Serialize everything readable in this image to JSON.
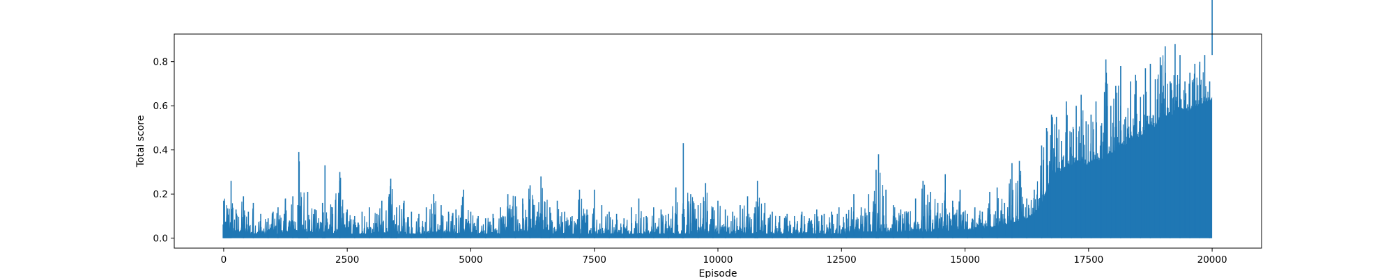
{
  "chart_data": {
    "type": "line",
    "title": "",
    "xlabel": "Episode",
    "ylabel": "Total score",
    "xlim": [
      -1000,
      21000
    ],
    "ylim": [
      -0.045,
      0.925
    ],
    "xticks": [
      0,
      2500,
      5000,
      7500,
      10000,
      12500,
      15000,
      17500,
      20000
    ],
    "yticks": [
      0.0,
      0.2,
      0.4,
      0.6,
      0.8
    ],
    "xtick_labels": [
      "0",
      "2500",
      "5000",
      "7500",
      "10000",
      "12500",
      "15000",
      "17500",
      "20000"
    ],
    "ytick_labels": [
      "0.0",
      "0.2",
      "0.4",
      "0.6",
      "0.8"
    ],
    "grid": false,
    "legend": "none",
    "series": [
      {
        "color": "#1f77b4",
        "x": [
          0,
          150,
          250,
          400,
          500,
          600,
          750,
          900,
          1000,
          1100,
          1250,
          1400,
          1500,
          1520,
          1700,
          1850,
          2000,
          2050,
          2200,
          2350,
          2500,
          2650,
          2800,
          2950,
          3100,
          3200,
          3350,
          3380,
          3500,
          3650,
          3800,
          3950,
          4100,
          4250,
          4400,
          4550,
          4700,
          4850,
          5000,
          5150,
          5300,
          5450,
          5600,
          5750,
          5900,
          6050,
          6200,
          6350,
          6420,
          6600,
          6750,
          6900,
          7050,
          7200,
          7350,
          7500,
          7650,
          7800,
          7950,
          8100,
          8250,
          8400,
          8550,
          8700,
          8850,
          9000,
          9150,
          9280,
          9300,
          9450,
          9600,
          9750,
          9900,
          10000,
          10150,
          10300,
          10450,
          10600,
          10750,
          10800,
          10950,
          11100,
          11250,
          11400,
          11550,
          11700,
          11850,
          12000,
          12150,
          12300,
          12450,
          12600,
          12750,
          12900,
          13050,
          13200,
          13250,
          13400,
          13550,
          13700,
          13850,
          14000,
          14150,
          14300,
          14450,
          14600,
          14750,
          14900,
          15050,
          15200,
          15350,
          15500,
          15650,
          15800,
          15950,
          16100,
          16250,
          16400,
          16550,
          16650,
          16750,
          16850,
          16950,
          17050,
          17150,
          17250,
          17350,
          17450,
          17550,
          17650,
          17750,
          17850,
          17950,
          18050,
          18150,
          18250,
          18350,
          18450,
          18550,
          18650,
          18750,
          18850,
          18950,
          19050,
          19150,
          19250,
          19350,
          19450,
          19550,
          19650,
          19750,
          19850,
          19950,
          20000
        ],
        "min": [
          0.0,
          0.0,
          0.01,
          0.0,
          0.01,
          0.0,
          0.01,
          0.0,
          0.01,
          0.0,
          0.01,
          0.0,
          0.01,
          0.0,
          0.0,
          0.01,
          0.0,
          0.0,
          0.01,
          0.0,
          0.01,
          0.0,
          0.01,
          0.0,
          0.01,
          0.0,
          0.01,
          0.0,
          0.0,
          0.01,
          0.0,
          0.01,
          0.0,
          0.01,
          0.0,
          0.01,
          0.0,
          0.01,
          0.0,
          0.01,
          0.0,
          0.01,
          0.0,
          0.01,
          0.0,
          0.01,
          0.0,
          0.01,
          0.0,
          0.0,
          0.01,
          0.0,
          0.01,
          0.0,
          0.01,
          0.0,
          0.01,
          0.0,
          0.01,
          0.0,
          0.01,
          0.0,
          0.01,
          0.0,
          0.01,
          0.0,
          0.01,
          0.0,
          0.0,
          0.01,
          0.0,
          0.01,
          0.0,
          0.01,
          0.0,
          0.01,
          0.0,
          0.01,
          0.0,
          0.0,
          0.01,
          0.0,
          0.01,
          0.0,
          0.01,
          0.0,
          0.01,
          0.0,
          0.01,
          0.0,
          0.01,
          0.0,
          0.01,
          0.0,
          0.01,
          0.0,
          0.0,
          0.01,
          0.0,
          0.01,
          0.0,
          0.01,
          0.0,
          0.01,
          0.0,
          0.01,
          0.0,
          0.01,
          0.0,
          0.01,
          0.0,
          0.01,
          0.0,
          0.01,
          0.0,
          0.01,
          0.0,
          0.01,
          0.0,
          0.01,
          0.0,
          0.01,
          0.0,
          0.01,
          0.0,
          0.01,
          0.0,
          0.01,
          0.0,
          0.01,
          0.0,
          0.01,
          0.0,
          0.01,
          0.0,
          0.01,
          0.0,
          0.01,
          0.0,
          0.01,
          0.0,
          0.01,
          0.0,
          0.01,
          0.0,
          0.01,
          0.0,
          0.01,
          0.0,
          0.01,
          0.0,
          0.01,
          0.0
        ],
        "max": [
          0.17,
          0.26,
          0.13,
          0.19,
          0.12,
          0.16,
          0.11,
          0.09,
          0.12,
          0.14,
          0.18,
          0.19,
          0.15,
          0.39,
          0.21,
          0.13,
          0.16,
          0.33,
          0.14,
          0.3,
          0.13,
          0.1,
          0.12,
          0.14,
          0.11,
          0.17,
          0.2,
          0.27,
          0.14,
          0.17,
          0.12,
          0.11,
          0.14,
          0.2,
          0.15,
          0.12,
          0.13,
          0.22,
          0.12,
          0.1,
          0.09,
          0.11,
          0.14,
          0.2,
          0.19,
          0.18,
          0.24,
          0.12,
          0.28,
          0.14,
          0.17,
          0.12,
          0.1,
          0.22,
          0.13,
          0.22,
          0.15,
          0.12,
          0.11,
          0.09,
          0.14,
          0.18,
          0.1,
          0.14,
          0.13,
          0.11,
          0.23,
          0.11,
          0.43,
          0.2,
          0.15,
          0.25,
          0.14,
          0.17,
          0.13,
          0.12,
          0.15,
          0.19,
          0.14,
          0.26,
          0.16,
          0.12,
          0.1,
          0.11,
          0.1,
          0.12,
          0.09,
          0.13,
          0.11,
          0.12,
          0.14,
          0.11,
          0.2,
          0.14,
          0.2,
          0.31,
          0.38,
          0.22,
          0.15,
          0.13,
          0.12,
          0.18,
          0.26,
          0.21,
          0.16,
          0.29,
          0.17,
          0.22,
          0.11,
          0.14,
          0.12,
          0.21,
          0.23,
          0.16,
          0.34,
          0.35,
          0.18,
          0.22,
          0.42,
          0.5,
          0.56,
          0.55,
          0.44,
          0.62,
          0.48,
          0.6,
          0.65,
          0.53,
          0.56,
          0.62,
          0.51,
          0.81,
          0.6,
          0.69,
          0.78,
          0.55,
          0.71,
          0.74,
          0.64,
          0.77,
          0.79,
          0.72,
          0.82,
          0.87,
          0.71,
          0.88,
          0.83,
          0.71,
          0.75,
          0.79,
          0.8,
          0.83,
          0.71,
          0.83,
          0.65
        ],
        "dense": [
          0.02,
          0.03,
          0.03,
          0.03,
          0.02,
          0.02,
          0.02,
          0.02,
          0.02,
          0.02,
          0.03,
          0.03,
          0.03,
          0.03,
          0.03,
          0.02,
          0.03,
          0.03,
          0.02,
          0.03,
          0.02,
          0.02,
          0.02,
          0.02,
          0.02,
          0.02,
          0.03,
          0.03,
          0.02,
          0.02,
          0.02,
          0.02,
          0.02,
          0.03,
          0.02,
          0.02,
          0.02,
          0.03,
          0.02,
          0.02,
          0.02,
          0.02,
          0.02,
          0.02,
          0.03,
          0.03,
          0.03,
          0.02,
          0.03,
          0.02,
          0.02,
          0.02,
          0.02,
          0.02,
          0.02,
          0.02,
          0.02,
          0.02,
          0.02,
          0.02,
          0.02,
          0.02,
          0.02,
          0.02,
          0.02,
          0.02,
          0.02,
          0.02,
          0.02,
          0.02,
          0.02,
          0.02,
          0.02,
          0.02,
          0.02,
          0.02,
          0.02,
          0.02,
          0.02,
          0.02,
          0.02,
          0.02,
          0.02,
          0.02,
          0.02,
          0.02,
          0.02,
          0.02,
          0.02,
          0.02,
          0.02,
          0.02,
          0.03,
          0.03,
          0.03,
          0.03,
          0.03,
          0.03,
          0.03,
          0.03,
          0.03,
          0.03,
          0.03,
          0.03,
          0.03,
          0.03,
          0.04,
          0.04,
          0.04,
          0.04,
          0.04,
          0.05,
          0.05,
          0.06,
          0.07,
          0.08,
          0.09,
          0.11,
          0.16,
          0.22,
          0.28,
          0.3,
          0.3,
          0.33,
          0.33,
          0.35,
          0.35,
          0.33,
          0.35,
          0.36,
          0.35,
          0.38,
          0.38,
          0.4,
          0.43,
          0.42,
          0.45,
          0.47,
          0.45,
          0.5,
          0.52,
          0.5,
          0.55,
          0.56,
          0.54,
          0.58,
          0.6,
          0.57,
          0.58,
          0.6,
          0.6,
          0.62,
          0.62,
          0.64,
          0.6
        ]
      }
    ]
  }
}
